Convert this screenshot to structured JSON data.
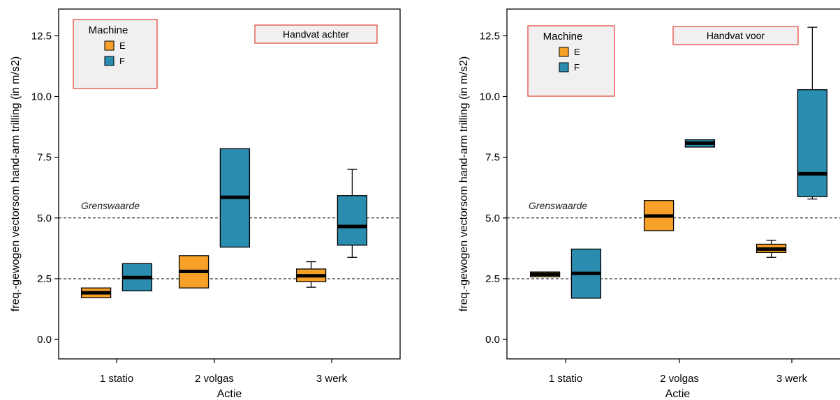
{
  "chart_data": [
    {
      "type": "boxplot",
      "title": "",
      "xlabel": "Actie",
      "ylabel": "freq.-gewogen vectorsom hand-arm trilling (in m/s2)",
      "categories": [
        "1 statio",
        "2 volgas",
        "3 werk"
      ],
      "yticks": [
        "0.0",
        "2.5",
        "5.0",
        "7.5",
        "10.0",
        "12.5"
      ],
      "ylim": [
        -0.8,
        13.6
      ],
      "legend": {
        "title": "Machine",
        "placement": "top-left",
        "items": [
          {
            "name": "E",
            "color": "#f7a128"
          },
          {
            "name": "F",
            "color": "#2a8caf"
          }
        ]
      },
      "panel_label": "Handvat achter",
      "reference_lines": [
        {
          "y": 5.0,
          "label": "Grenswaarde"
        },
        {
          "y": 2.5,
          "label": ""
        }
      ],
      "series": [
        {
          "name": "E",
          "color": "#f7a128",
          "boxes": [
            {
              "category": "1 statio",
              "q1": 1.72,
              "median": 1.92,
              "q3": 2.12,
              "whisker_low": 1.72,
              "whisker_high": 2.12
            },
            {
              "category": "2 volgas",
              "q1": 2.12,
              "median": 2.8,
              "q3": 3.45,
              "whisker_low": 2.12,
              "whisker_high": 3.45
            },
            {
              "category": "3 werk",
              "q1": 2.38,
              "median": 2.62,
              "q3": 2.9,
              "whisker_low": 2.15,
              "whisker_high": 3.2
            }
          ]
        },
        {
          "name": "F",
          "color": "#2a8caf",
          "boxes": [
            {
              "category": "1 statio",
              "q1": 2.0,
              "median": 2.55,
              "q3": 3.12,
              "whisker_low": 2.0,
              "whisker_high": 3.12
            },
            {
              "category": "2 volgas",
              "q1": 3.8,
              "median": 5.85,
              "q3": 7.85,
              "whisker_low": 3.8,
              "whisker_high": 7.85
            },
            {
              "category": "3 werk",
              "q1": 3.88,
              "median": 4.65,
              "q3": 5.92,
              "whisker_low": 3.38,
              "whisker_high": 7.0
            }
          ]
        }
      ]
    },
    {
      "type": "boxplot",
      "title": "",
      "xlabel": "Actie",
      "ylabel": "freq.-gewogen vectorsom hand-arm trilling (in m/s2)",
      "categories": [
        "1 statio",
        "2 volgas",
        "3 werk"
      ],
      "yticks": [
        "0.0",
        "2.5",
        "5.0",
        "7.5",
        "10.0",
        "12.5"
      ],
      "ylim": [
        -0.8,
        13.6
      ],
      "legend": {
        "title": "Machine",
        "placement": "top-left",
        "items": [
          {
            "name": "E",
            "color": "#f7a128"
          },
          {
            "name": "F",
            "color": "#2a8caf"
          }
        ]
      },
      "panel_label": "Handvat voor",
      "reference_lines": [
        {
          "y": 5.0,
          "label": "Grenswaarde"
        },
        {
          "y": 2.5,
          "label": ""
        }
      ],
      "series": [
        {
          "name": "E",
          "color": "#f7a128",
          "boxes": [
            {
              "category": "1 statio",
              "q1": 2.58,
              "median": 2.68,
              "q3": 2.78,
              "whisker_low": 2.58,
              "whisker_high": 2.78
            },
            {
              "category": "2 volgas",
              "q1": 4.48,
              "median": 5.08,
              "q3": 5.72,
              "whisker_low": 4.48,
              "whisker_high": 5.72
            },
            {
              "category": "3 werk",
              "q1": 3.58,
              "median": 3.72,
              "q3": 3.92,
              "whisker_low": 3.38,
              "whisker_high": 4.08
            }
          ]
        },
        {
          "name": "F",
          "color": "#2a8caf",
          "boxes": [
            {
              "category": "1 statio",
              "q1": 1.7,
              "median": 2.72,
              "q3": 3.72,
              "whisker_low": 1.7,
              "whisker_high": 3.72
            },
            {
              "category": "2 volgas",
              "q1": 7.92,
              "median": 8.08,
              "q3": 8.22,
              "whisker_low": 7.92,
              "whisker_high": 8.22
            },
            {
              "category": "3 werk",
              "q1": 5.88,
              "median": 6.82,
              "q3": 10.28,
              "whisker_low": 5.78,
              "whisker_high": 12.85
            }
          ]
        }
      ]
    }
  ]
}
